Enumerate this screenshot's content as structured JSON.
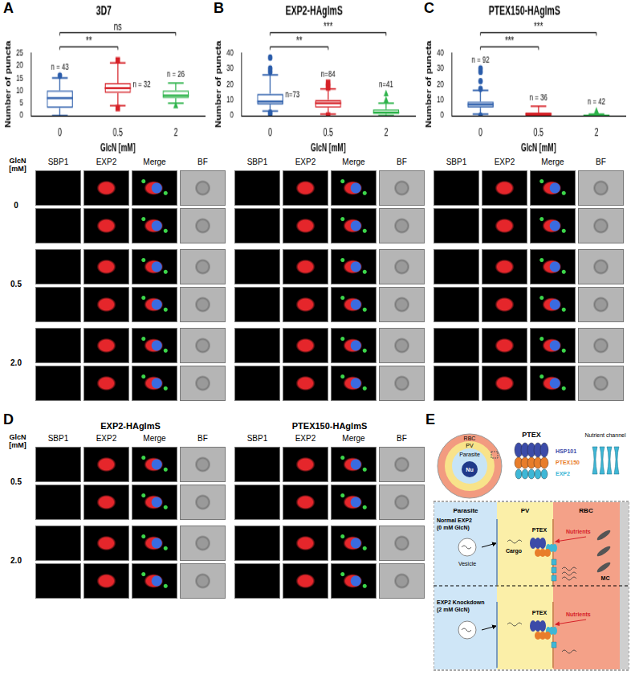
{
  "chart_data": [
    {
      "panel": "A",
      "type": "boxplot",
      "title": "3D7",
      "x_label": "GlcN [mM]",
      "y_label": "Number of puncta",
      "categories": [
        "0",
        "0.5",
        "2"
      ],
      "colors": [
        "#2a5caa",
        "#d62027",
        "#2db34a"
      ],
      "markers": [
        "circle",
        "square",
        "triangle"
      ],
      "boxes": [
        {
          "whisker_low": 0,
          "q1": 3,
          "median": 7,
          "q3": 10,
          "whisker_high": 15,
          "outliers": [
            16
          ]
        },
        {
          "whisker_low": 4,
          "q1": 9,
          "median": 11,
          "q3": 13,
          "whisker_high": 21,
          "outliers": [
            22,
            3
          ]
        },
        {
          "whisker_low": 5,
          "q1": 7,
          "median": 8,
          "q3": 10,
          "whisker_high": 13,
          "outliers": [
            4
          ]
        }
      ],
      "n_labels": [
        "n = 43",
        "n = 32",
        "n = 26"
      ],
      "significance": [
        {
          "from": "0",
          "to": "0.5",
          "label": "**"
        },
        {
          "from": "0",
          "to": "2",
          "label": "ns"
        }
      ],
      "ylim": [
        0,
        25
      ],
      "yticks": [
        0,
        5,
        10,
        15,
        20,
        25
      ],
      "grid": false
    },
    {
      "panel": "B",
      "type": "boxplot",
      "title": "EXP2-HAglmS",
      "x_label": "GlcN [mM]",
      "y_label": "Number of puncta",
      "categories": [
        "0",
        "0.5",
        "2"
      ],
      "colors": [
        "#2a5caa",
        "#d62027",
        "#2db34a"
      ],
      "markers": [
        "circle",
        "square",
        "triangle"
      ],
      "boxes": [
        {
          "whisker_low": 3,
          "q1": 7,
          "median": 9,
          "q3": 14,
          "whisker_high": 26,
          "outliers": [
            28,
            30,
            37,
            2,
            1
          ]
        },
        {
          "whisker_low": 1,
          "q1": 5,
          "median": 8,
          "q3": 10,
          "whisker_high": 17,
          "outliers": [
            18,
            19,
            21,
            0
          ]
        },
        {
          "whisker_low": 0,
          "q1": 1,
          "median": 2,
          "q3": 4,
          "whisker_high": 8,
          "outliers": [
            10,
            14
          ]
        }
      ],
      "n_labels": [
        "n=73",
        "n=84",
        "n=41"
      ],
      "significance": [
        {
          "from": "0",
          "to": "0.5",
          "label": "**"
        },
        {
          "from": "0",
          "to": "2",
          "label": "***"
        }
      ],
      "ylim": [
        0,
        40
      ],
      "yticks": [
        0,
        10,
        20,
        30,
        40
      ],
      "grid": false
    },
    {
      "panel": "C",
      "type": "boxplot",
      "title": "PTEX150-HAglmS",
      "x_label": "GlcN [mM]",
      "y_label": "Number of puncta",
      "categories": [
        "0",
        "0.5",
        "2"
      ],
      "colors": [
        "#2a5caa",
        "#d62027",
        "#2db34a"
      ],
      "markers": [
        "circle",
        "square",
        "triangle"
      ],
      "boxes": [
        {
          "whisker_low": 1,
          "q1": 5,
          "median": 7,
          "q3": 9,
          "whisker_high": 16,
          "outliers": [
            17,
            22,
            28,
            30,
            0
          ]
        },
        {
          "whisker_low": 0,
          "q1": 0,
          "median": 1,
          "q3": 2,
          "whisker_high": 6,
          "outliers": []
        },
        {
          "whisker_low": 0,
          "q1": 0,
          "median": 0,
          "q3": 0,
          "whisker_high": 1,
          "outliers": [
            2,
            3
          ]
        }
      ],
      "n_labels": [
        "n = 92",
        "n = 36",
        "n = 42"
      ],
      "significance": [
        {
          "from": "0",
          "to": "0.5",
          "label": "***"
        },
        {
          "from": "0",
          "to": "2",
          "label": "***"
        }
      ],
      "ylim": [
        0,
        40
      ],
      "yticks": [
        0,
        10,
        20,
        30,
        40
      ],
      "grid": false
    }
  ],
  "image_panels": {
    "row_label": "GlcN [mM]",
    "row_groups": [
      "0",
      "0.5",
      "2.0"
    ],
    "column_headers": [
      "SBP1",
      "EXP2",
      "Merge",
      "BF"
    ]
  },
  "panel_d": {
    "panel": "D",
    "row_label": "GlcN [mM]",
    "row_groups": [
      "0.5",
      "2.0"
    ],
    "titles": [
      "EXP2-HAglmS",
      "PTEX150-HAglmS"
    ],
    "column_headers": [
      "SBP1",
      "EXP2",
      "Merge",
      "BF"
    ]
  },
  "diagram": {
    "panel": "E",
    "cell": {
      "rbc": "RBC",
      "pv": "PV",
      "parasite": "Parasite",
      "nucleus": "Nu"
    },
    "complex": {
      "title": "PTEX",
      "parts": [
        {
          "name": "HSP101",
          "color": "#3b4ba8"
        },
        {
          "name": "PTEX150",
          "color": "#e87d2a"
        },
        {
          "name": "EXP2",
          "color": "#3fb7d6"
        }
      ],
      "channel": "Nutrient channel"
    },
    "zones": [
      "Parasite",
      "PV",
      "RBC"
    ],
    "conditions": [
      "Normal EXP2 (0 mM GlcN)",
      "EXP2 Knockdown (2 mM GlcN)"
    ],
    "items": {
      "vesicle": "Vesicle",
      "cargo": "Cargo",
      "ptex": "PTEX",
      "nutrients": "Nutrients",
      "mc": "MC"
    }
  }
}
